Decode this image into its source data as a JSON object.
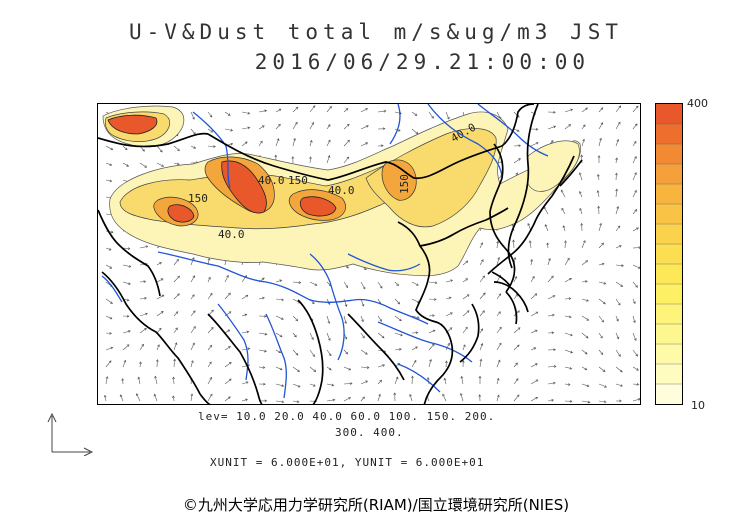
{
  "title": {
    "line1": "U-V&Dust total m/s&ug/m3 JST",
    "line2": "2016/06/29.21:00:00"
  },
  "colorbar": {
    "max_label": "400",
    "min_label": "10",
    "colors": [
      "#e8582a",
      "#ee6e2e",
      "#f28a33",
      "#f5a03a",
      "#f7b53f",
      "#f9c446",
      "#fbd24c",
      "#fcde52",
      "#fde858",
      "#fef064",
      "#fef47a",
      "#fef790",
      "#fefaa8",
      "#fffcc0",
      "#fffddc"
    ]
  },
  "map": {
    "dust_fill_colors": {
      "light": "#fdf4b8",
      "medium": "#f9da6c",
      "high": "#f2a63c",
      "peak": "#e8582a"
    },
    "coast_color": "#000000",
    "river_color": "#1f55d6",
    "contour_labels": [
      "150",
      "40.0",
      "150",
      "40.0",
      "40.0",
      "150",
      "40.0"
    ]
  },
  "footer": {
    "levels_line1": "lev= 10.0 20.0 40.0 60.0 100. 150. 200.",
    "levels_line2": "300. 400.",
    "units": "XUNIT = 6.000E+01, YUNIT = 6.000E+01",
    "credit": "©九州大学応用力学研究所(RIAM)/国立環境研究所(NIES)"
  }
}
